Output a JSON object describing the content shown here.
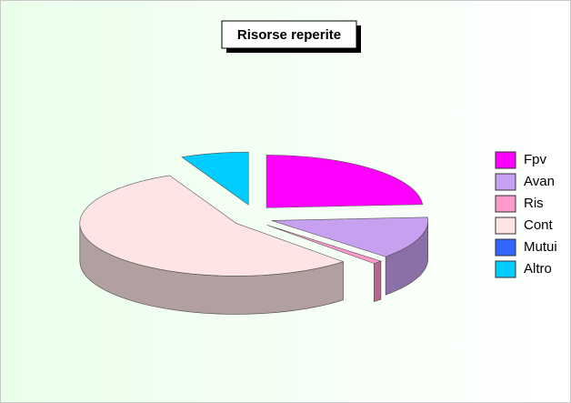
{
  "chart_data": {
    "type": "pie",
    "title": "Risorse reperite",
    "categories": [
      "Fpv",
      "Avan",
      "Ris",
      "Cont",
      "Mutui",
      "Altro"
    ],
    "values": [
      24,
      13,
      1,
      55,
      0,
      7
    ],
    "colors": [
      "#ff00ff",
      "#c8a0f0",
      "#ff99cc",
      "#ffe4e4",
      "#3366ff",
      "#00ccff"
    ],
    "legend": "right"
  }
}
